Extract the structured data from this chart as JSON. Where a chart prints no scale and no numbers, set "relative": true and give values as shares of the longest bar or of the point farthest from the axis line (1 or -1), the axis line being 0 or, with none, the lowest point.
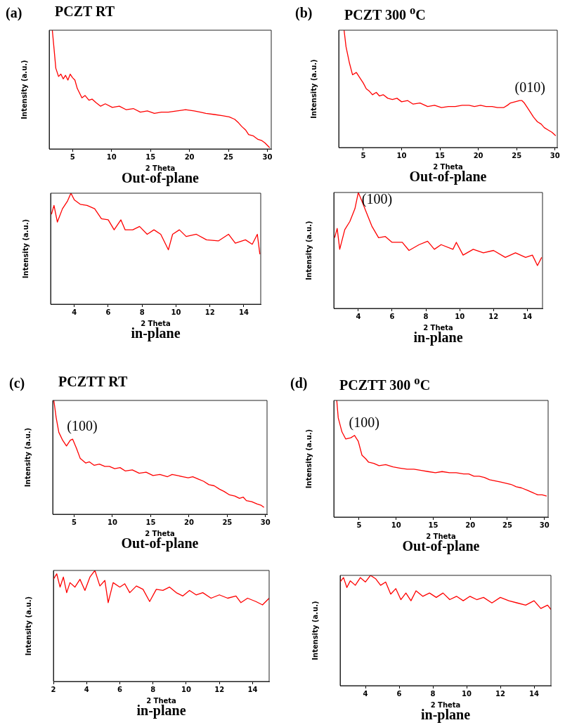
{
  "chart_data": [
    {
      "type": "line",
      "title": "PCZT RT",
      "xlabel": "2 Theta",
      "ylabel": "Intensity (a.u.)",
      "relative": true,
      "annotations": [
        "(a)",
        "Out-of-plane"
      ],
      "xlim": [
        2,
        30.5
      ],
      "xticks": [
        5,
        10,
        15,
        20,
        25,
        30
      ],
      "tick_labels": "x",
      "x": [
        2.4,
        2.6,
        2.85,
        3.2,
        3.5,
        3.8,
        4.1,
        4.4,
        4.7,
        5.0,
        5.3,
        5.6,
        5.9,
        6.2,
        6.6,
        7.1,
        7.5,
        8.0,
        8.6,
        9.2,
        10.1,
        11,
        11.9,
        12.8,
        13.7,
        14.6,
        15.5,
        16.4,
        17.3,
        18.4,
        19.5,
        20.6,
        21.4,
        22.1,
        23.2,
        24.2,
        25.1,
        25.8,
        26.3,
        26.7,
        27.2,
        27.6,
        28.2,
        28.8,
        29.3,
        29.7,
        30.3
      ],
      "series": [
        {
          "color": "#ff0000",
          "values": [
            1.0,
            0.86,
            0.68,
            0.61,
            0.63,
            0.59,
            0.62,
            0.58,
            0.63,
            0.6,
            0.58,
            0.51,
            0.47,
            0.43,
            0.45,
            0.41,
            0.42,
            0.39,
            0.36,
            0.38,
            0.35,
            0.36,
            0.33,
            0.34,
            0.31,
            0.32,
            0.3,
            0.31,
            0.31,
            0.32,
            0.33,
            0.32,
            0.31,
            0.3,
            0.29,
            0.28,
            0.27,
            0.25,
            0.22,
            0.19,
            0.16,
            0.12,
            0.11,
            0.08,
            0.07,
            0.05,
            0.01
          ]
        }
      ]
    },
    {
      "type": "line",
      "title": "PCZT 300 $^{o}$C",
      "xlabel": "2 Theta",
      "ylabel": "Intensity (a.u.)",
      "relative": true,
      "annotations": [
        "(b)",
        "Out-of-plane",
        {
          "text": "(010)",
          "x": 25.5,
          "y": 0.4
        }
      ],
      "xlim": [
        1.8,
        30.3
      ],
      "xticks": [
        5,
        10,
        15,
        20,
        25,
        30
      ],
      "tick_labels": "x",
      "x": [
        2.5,
        2.75,
        3.2,
        3.6,
        4.1,
        4.5,
        5.0,
        5.4,
        5.8,
        6.2,
        6.7,
        7.1,
        7.6,
        8.2,
        8.8,
        9.4,
        10,
        10.8,
        11.5,
        12.4,
        13.4,
        14.3,
        15.2,
        16.1,
        17,
        17.9,
        18.8,
        19.5,
        20.3,
        21,
        21.8,
        22.5,
        23.3,
        23.8,
        24.2,
        24.8,
        25.4,
        25.7,
        26.0,
        26.4,
        26.8,
        27.2,
        27.7,
        28.2,
        28.6,
        29.1,
        29.6,
        30.1
      ],
      "series": [
        {
          "color": "#ff0000",
          "values": [
            1,
            0.86,
            0.72,
            0.62,
            0.64,
            0.6,
            0.55,
            0.5,
            0.48,
            0.45,
            0.47,
            0.44,
            0.45,
            0.42,
            0.41,
            0.42,
            0.39,
            0.4,
            0.37,
            0.38,
            0.35,
            0.36,
            0.34,
            0.35,
            0.35,
            0.36,
            0.36,
            0.35,
            0.36,
            0.35,
            0.35,
            0.34,
            0.34,
            0.36,
            0.38,
            0.39,
            0.4,
            0.4,
            0.38,
            0.34,
            0.3,
            0.26,
            0.22,
            0.2,
            0.17,
            0.15,
            0.13,
            0.1
          ]
        }
      ]
    },
    {
      "type": "line",
      "xlabel": "2 Theta",
      "ylabel": "Intensity (a.u.)",
      "relative": true,
      "annotations": [
        "in-plane"
      ],
      "xlim": [
        2.6,
        15
      ],
      "xticks": [
        4,
        6,
        8,
        10,
        12,
        14
      ],
      "tick_labels": "x",
      "x": [
        2.65,
        2.8,
        3.0,
        3.3,
        3.6,
        3.8,
        4.0,
        4.35,
        4.75,
        5.2,
        5.6,
        6.0,
        6.35,
        6.75,
        7.0,
        7.45,
        7.85,
        8.3,
        8.7,
        9.1,
        9.55,
        9.8,
        10.2,
        10.6,
        11.2,
        11.8,
        12.5,
        13.1,
        13.5,
        14.1,
        14.5,
        14.8,
        14.95
      ],
      "series": [
        {
          "color": "#ff0000",
          "values": [
            0.81,
            0.89,
            0.74,
            0.86,
            0.93,
            1,
            0.94,
            0.9,
            0.89,
            0.86,
            0.77,
            0.76,
            0.67,
            0.76,
            0.67,
            0.67,
            0.7,
            0.63,
            0.67,
            0.63,
            0.49,
            0.63,
            0.67,
            0.61,
            0.63,
            0.58,
            0.57,
            0.63,
            0.55,
            0.58,
            0.54,
            0.63,
            0.45
          ]
        }
      ]
    },
    {
      "type": "line",
      "xlabel": "2 Theta",
      "ylabel": "Intensity (a.u.)",
      "relative": true,
      "annotations": [
        "in-plane",
        {
          "text": "(100)",
          "x": 4.0,
          "y": 1
        }
      ],
      "xlim": [
        2.55,
        14.9
      ],
      "xticks": [
        4,
        6,
        8,
        10,
        12,
        14
      ],
      "tick_labels": "x",
      "x": [
        2.6,
        2.75,
        2.9,
        3.2,
        3.5,
        3.8,
        4.0,
        4.2,
        4.5,
        4.8,
        5.2,
        5.6,
        6.0,
        6.6,
        7.0,
        7.6,
        8.1,
        8.5,
        8.9,
        9.6,
        9.8,
        10.2,
        10.8,
        11.4,
        12.0,
        12.7,
        13.3,
        13.9,
        14.3,
        14.6,
        14.85
      ],
      "series": [
        {
          "color": "#ff0000",
          "values": [
            0.61,
            0.69,
            0.51,
            0.68,
            0.75,
            0.86,
            1,
            0.93,
            0.82,
            0.71,
            0.61,
            0.62,
            0.57,
            0.57,
            0.5,
            0.55,
            0.58,
            0.51,
            0.55,
            0.51,
            0.57,
            0.46,
            0.51,
            0.48,
            0.5,
            0.44,
            0.48,
            0.44,
            0.46,
            0.37,
            0.44
          ]
        }
      ]
    },
    {
      "type": "line",
      "title": "PCZTT RT",
      "xlabel": "2 Theta",
      "ylabel": "Intensity (a.u.)",
      "relative": true,
      "annotations": [
        "(c)",
        "Out-of-plane",
        {
          "text": "(100)",
          "x": 4.8,
          "y": 0.66
        }
      ],
      "xlim": [
        2.2,
        30.2
      ],
      "xticks": [
        5,
        10,
        15,
        20,
        25,
        30
      ],
      "tick_labels": "x",
      "x": [
        2.35,
        2.65,
        3.0,
        3.5,
        4.0,
        4.5,
        4.8,
        5.3,
        5.8,
        6.5,
        7.0,
        7.6,
        8.3,
        9.0,
        9.6,
        10.3,
        11,
        11.7,
        12.6,
        13.5,
        14.4,
        15.3,
        16.2,
        17.2,
        17.8,
        18.5,
        19.2,
        19.9,
        20.5,
        21.2,
        21.9,
        22.6,
        23.3,
        24.0,
        24.6,
        25.3,
        26.0,
        26.6,
        27.1,
        27.5,
        28.2,
        28.9,
        29.4,
        29.8
      ],
      "series": [
        {
          "color": "#ff0000",
          "values": [
            1,
            0.85,
            0.72,
            0.65,
            0.6,
            0.65,
            0.66,
            0.58,
            0.49,
            0.45,
            0.46,
            0.43,
            0.44,
            0.42,
            0.42,
            0.4,
            0.41,
            0.38,
            0.39,
            0.36,
            0.37,
            0.34,
            0.35,
            0.33,
            0.35,
            0.34,
            0.33,
            0.32,
            0.33,
            0.31,
            0.29,
            0.26,
            0.25,
            0.22,
            0.2,
            0.17,
            0.16,
            0.14,
            0.15,
            0.12,
            0.11,
            0.09,
            0.08,
            0.06
          ]
        }
      ]
    },
    {
      "type": "line",
      "title": "PCZTT 300 $^{o}$C",
      "xlabel": "2 Theta",
      "ylabel": "Intensity (a.u.)",
      "relative": true,
      "annotations": [
        "(d)",
        "Out-of-plane",
        {
          "text": "(100)",
          "x": 4.4,
          "y": 0.7
        }
      ],
      "xlim": [
        1.6,
        30.5
      ],
      "xticks": [
        5,
        10,
        15,
        20,
        25,
        30
      ],
      "tick_labels": "x",
      "x": [
        2.0,
        2.2,
        2.7,
        3.2,
        3.9,
        4.4,
        4.9,
        5.4,
        5.9,
        6.3,
        7.0,
        7.7,
        8.6,
        9.6,
        10.5,
        11.5,
        12.4,
        13.4,
        14.3,
        15.3,
        16.2,
        17.2,
        18.1,
        19.1,
        19.8,
        20.5,
        21.2,
        21.9,
        22.6,
        23.4,
        24.1,
        24.8,
        25.5,
        26.2,
        26.9,
        27.7,
        28.4,
        29.1,
        29.7,
        30.3
      ],
      "series": [
        {
          "color": "#ff0000",
          "values": [
            1,
            0.85,
            0.73,
            0.67,
            0.68,
            0.7,
            0.65,
            0.53,
            0.5,
            0.47,
            0.46,
            0.44,
            0.45,
            0.43,
            0.42,
            0.41,
            0.41,
            0.4,
            0.39,
            0.38,
            0.39,
            0.38,
            0.38,
            0.37,
            0.37,
            0.35,
            0.35,
            0.34,
            0.32,
            0.31,
            0.3,
            0.29,
            0.28,
            0.26,
            0.25,
            0.23,
            0.21,
            0.19,
            0.19,
            0.18
          ]
        }
      ]
    },
    {
      "type": "line",
      "xlabel": "2 Theta",
      "ylabel": "Intensity (a.u.)",
      "relative": true,
      "annotations": [
        "in-plane"
      ],
      "xlim": [
        2,
        15
      ],
      "xticks": [
        2,
        4,
        6,
        8,
        10,
        12,
        14
      ],
      "tick_labels": "x",
      "x": [
        2.0,
        2.2,
        2.4,
        2.6,
        2.8,
        3.0,
        3.3,
        3.6,
        3.9,
        4.2,
        4.5,
        4.8,
        5.1,
        5.3,
        5.6,
        6.0,
        6.3,
        6.6,
        7.0,
        7.4,
        7.8,
        8.2,
        8.6,
        9.0,
        9.4,
        9.8,
        10.2,
        10.6,
        11.0,
        11.5,
        12.0,
        12.5,
        13.0,
        13.3,
        13.7,
        14.2,
        14.6,
        15.0
      ],
      "series": [
        {
          "color": "#ff0000",
          "values": [
            0.92,
            0.97,
            0.85,
            0.94,
            0.8,
            0.89,
            0.85,
            0.92,
            0.82,
            0.94,
            1,
            0.86,
            0.91,
            0.71,
            0.89,
            0.85,
            0.88,
            0.8,
            0.86,
            0.83,
            0.72,
            0.83,
            0.82,
            0.85,
            0.8,
            0.77,
            0.82,
            0.78,
            0.8,
            0.75,
            0.78,
            0.75,
            0.77,
            0.71,
            0.75,
            0.72,
            0.69,
            0.75
          ]
        }
      ]
    },
    {
      "type": "line",
      "xlabel": "2 Theta",
      "ylabel": "Intensity (a.u.)",
      "relative": true,
      "annotations": [
        "in-plane"
      ],
      "xlim": [
        2.5,
        15
      ],
      "xticks": [
        4,
        6,
        8,
        10,
        12,
        14
      ],
      "tick_labels": "x",
      "x": [
        2.5,
        2.7,
        2.9,
        3.1,
        3.4,
        3.7,
        4.0,
        4.3,
        4.6,
        4.9,
        5.2,
        5.5,
        5.8,
        6.1,
        6.4,
        6.7,
        7.0,
        7.4,
        7.8,
        8.2,
        8.6,
        9.0,
        9.4,
        9.8,
        10.2,
        10.6,
        11.0,
        11.5,
        12.0,
        12.5,
        13.0,
        13.5,
        14.0,
        14.4,
        14.8,
        15.0
      ],
      "series": [
        {
          "color": "#ff0000",
          "values": [
            0.94,
            0.98,
            0.89,
            0.95,
            0.91,
            0.98,
            0.94,
            1,
            0.97,
            0.91,
            0.94,
            0.83,
            0.88,
            0.78,
            0.84,
            0.77,
            0.86,
            0.81,
            0.84,
            0.8,
            0.84,
            0.78,
            0.81,
            0.77,
            0.81,
            0.78,
            0.8,
            0.75,
            0.8,
            0.77,
            0.75,
            0.73,
            0.77,
            0.7,
            0.73,
            0.69
          ]
        }
      ]
    }
  ]
}
